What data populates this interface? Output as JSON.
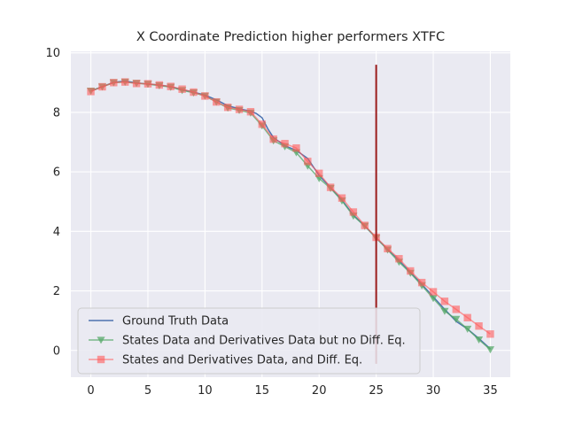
{
  "chart_data": {
    "type": "line",
    "title": "X Coordinate Prediction higher performers XTFC",
    "xlabel": "",
    "ylabel": "",
    "xlim": [
      -1.75,
      36.75
    ],
    "ylim": [
      -0.9,
      10.05
    ],
    "xticks": [
      0,
      5,
      10,
      15,
      20,
      25,
      30,
      35
    ],
    "yticks": [
      0,
      2,
      4,
      6,
      8,
      10
    ],
    "xtick_labels": [
      "0",
      "5",
      "10",
      "15",
      "20",
      "25",
      "30",
      "35"
    ],
    "ytick_labels": [
      "0",
      "2",
      "4",
      "6",
      "8",
      "10"
    ],
    "grid": true,
    "legend_position": "lower-left",
    "colors": {
      "background": "#eaeaf2",
      "grid": "#ffffff",
      "ground_truth": "#4c72b0",
      "no_diff_eq": "#55a868",
      "with_diff_eq": "#ff5a5a",
      "vline": "#9b1c1c",
      "text": "#262626"
    },
    "vline": {
      "x": 25,
      "ymin": -0.45,
      "ymax": 9.6
    },
    "series": [
      {
        "name": "Ground Truth Data",
        "marker": "none",
        "x": [
          0,
          1,
          2,
          3,
          4,
          5,
          6,
          7,
          8,
          9,
          10,
          11,
          12,
          13,
          14,
          14.5,
          15,
          15.5,
          16,
          17,
          18,
          19,
          20,
          21,
          22,
          23,
          24,
          25,
          26,
          27,
          28,
          29,
          30,
          31,
          32,
          33,
          34,
          35
        ],
        "values": [
          8.72,
          8.86,
          9.01,
          9.05,
          8.99,
          8.95,
          8.92,
          8.86,
          8.76,
          8.68,
          8.58,
          8.42,
          8.22,
          8.12,
          8.04,
          7.96,
          7.82,
          7.45,
          7.15,
          6.88,
          6.72,
          6.45,
          5.88,
          5.48,
          5.05,
          4.55,
          4.18,
          3.78,
          3.4,
          3.02,
          2.62,
          2.22,
          1.8,
          1.38,
          0.98,
          0.72,
          0.4,
          0.05
        ]
      },
      {
        "name": "States Data and Derivatives Data but no Diff. Eq.",
        "marker": "triangle-down",
        "x": [
          0,
          1,
          2,
          3,
          4,
          5,
          6,
          7,
          8,
          9,
          10,
          11,
          12,
          13,
          14,
          15,
          16,
          17,
          18,
          19,
          20,
          21,
          22,
          23,
          24,
          25,
          26,
          27,
          28,
          29,
          30,
          31,
          32,
          33,
          34,
          35
        ],
        "values": [
          8.72,
          8.86,
          9.0,
          9.02,
          8.98,
          8.95,
          8.9,
          8.85,
          8.74,
          8.66,
          8.55,
          8.35,
          8.15,
          8.07,
          7.98,
          7.55,
          7.05,
          6.85,
          6.65,
          6.2,
          5.78,
          5.45,
          5.03,
          4.52,
          4.18,
          3.78,
          3.38,
          2.97,
          2.6,
          2.18,
          1.75,
          1.32,
          1.05,
          0.72,
          0.36,
          0.03
        ]
      },
      {
        "name": "States and Derivatives Data, and Diff. Eq.",
        "marker": "square",
        "x": [
          0,
          1,
          2,
          3,
          4,
          5,
          6,
          7,
          8,
          9,
          10,
          11,
          12,
          13,
          14,
          15,
          16,
          17,
          18,
          19,
          20,
          21,
          22,
          23,
          24,
          25,
          26,
          27,
          28,
          29,
          30,
          31,
          32,
          33,
          34,
          35
        ],
        "values": [
          8.7,
          8.86,
          9.0,
          9.02,
          8.97,
          8.96,
          8.92,
          8.87,
          8.78,
          8.68,
          8.55,
          8.35,
          8.17,
          8.1,
          8.02,
          7.6,
          7.1,
          6.95,
          6.8,
          6.35,
          5.95,
          5.48,
          5.12,
          4.65,
          4.2,
          3.8,
          3.42,
          3.08,
          2.67,
          2.28,
          1.97,
          1.65,
          1.38,
          1.1,
          0.82,
          0.55
        ]
      }
    ]
  }
}
